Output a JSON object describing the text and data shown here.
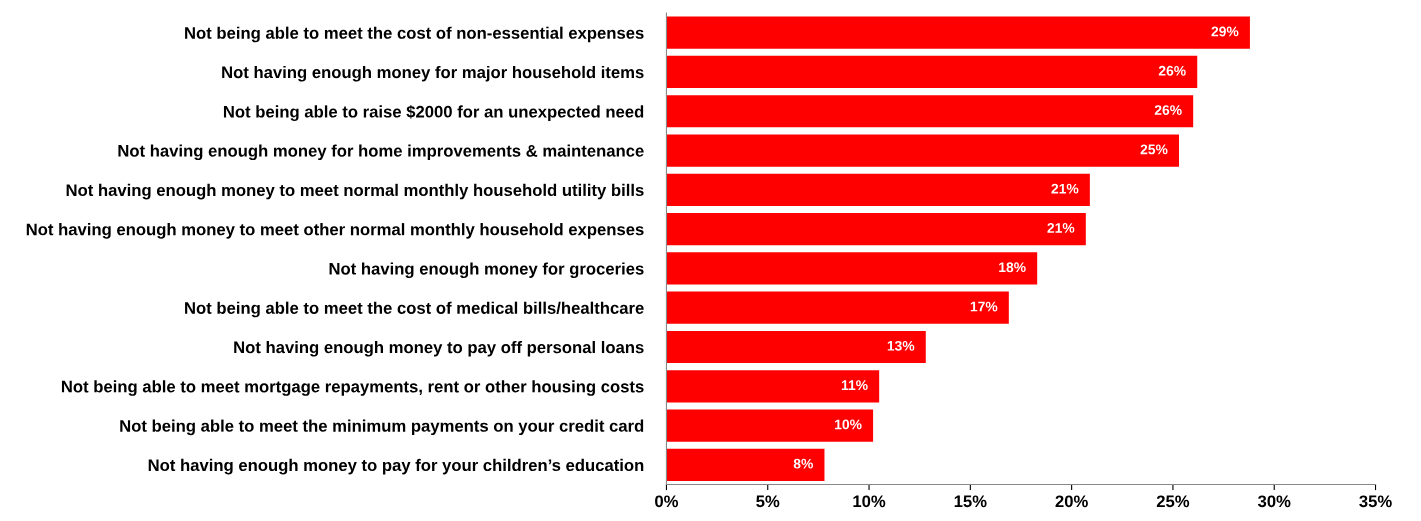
{
  "chart_data": {
    "type": "bar",
    "orientation": "horizontal",
    "categories": [
      "Not being able to meet the cost of non-essential expenses",
      "Not having enough money for major household items",
      "Not being able to raise $2000 for an unexpected need",
      "Not having enough money for home improvements & maintenance",
      "Not having enough money to meet normal monthly household utility bills",
      "Not having enough money to meet other normal monthly household expenses",
      "Not having enough money for groceries",
      "Not being able to meet the cost of medical bills/healthcare",
      "Not having enough money to pay off personal loans",
      "Not being able to meet mortgage repayments, rent or other housing costs",
      "Not being able to meet the minimum payments on your credit card",
      "Not having enough money to pay for your children’s education"
    ],
    "values": [
      28.8,
      26.2,
      26.0,
      25.3,
      20.9,
      20.7,
      18.3,
      16.9,
      12.8,
      10.5,
      10.2,
      7.8
    ],
    "value_labels": [
      "29%",
      "26%",
      "26%",
      "25%",
      "21%",
      "21%",
      "18%",
      "17%",
      "13%",
      "11%",
      "10%",
      "8%"
    ],
    "color": "#ff0000",
    "xlim": [
      0,
      35
    ],
    "xticks": [
      {
        "value": 0,
        "label": "0%"
      },
      {
        "value": 5,
        "label": "5%"
      },
      {
        "value": 10,
        "label": "10%"
      },
      {
        "value": 15,
        "label": "15%"
      },
      {
        "value": 20,
        "label": "20%"
      },
      {
        "value": 25,
        "label": "25%"
      },
      {
        "value": 30,
        "label": "30%"
      },
      {
        "value": 35,
        "label": "35%"
      }
    ],
    "grid": false,
    "legend": false
  }
}
